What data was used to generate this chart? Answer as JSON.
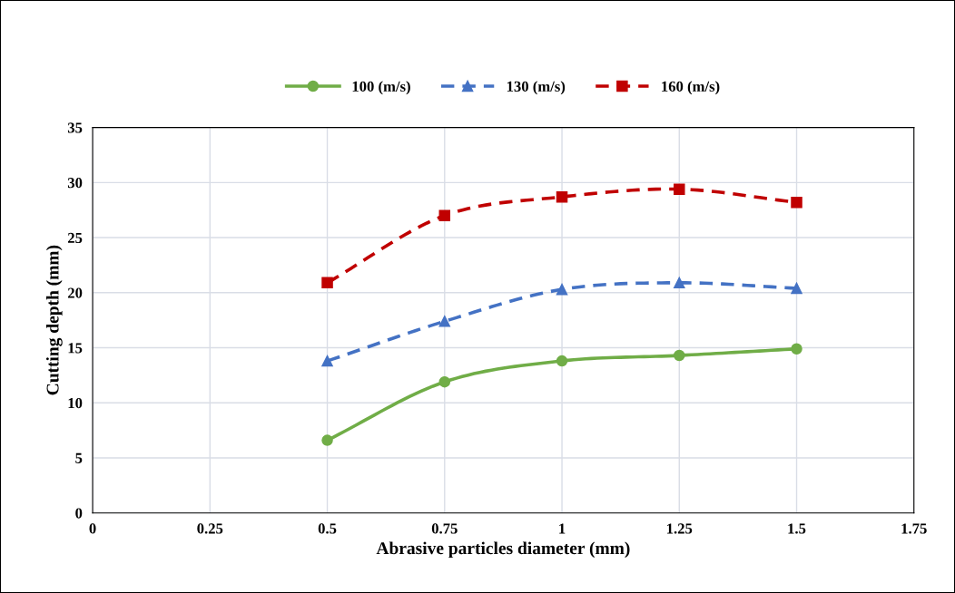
{
  "chart_data": {
    "type": "line",
    "xlabel": "Abrasive particles diameter (mm)",
    "ylabel": "Cutting depth (mm)",
    "x": [
      0.5,
      0.75,
      1,
      1.25,
      1.5
    ],
    "series": [
      {
        "name": "100 (m/s)",
        "color": "#70ad47",
        "marker": "circle",
        "line_style": "solid",
        "values": [
          6.6,
          11.9,
          13.8,
          14.3,
          14.9
        ]
      },
      {
        "name": "130 (m/s)",
        "color": "#4472c4",
        "marker": "triangle",
        "line_style": "dashed",
        "values": [
          13.8,
          17.4,
          20.3,
          20.9,
          20.4
        ]
      },
      {
        "name": "160 (m/s)",
        "color": "#c00000",
        "marker": "square",
        "line_style": "dashed",
        "values": [
          20.9,
          27.0,
          28.7,
          29.4,
          28.2
        ]
      }
    ],
    "xlim": [
      0,
      1.75
    ],
    "xticks": [
      0,
      0.25,
      0.5,
      0.75,
      1,
      1.25,
      1.5,
      1.75
    ],
    "ylim": [
      0,
      35
    ],
    "yticks": [
      0,
      5,
      10,
      15,
      20,
      25,
      30,
      35
    ],
    "grid": true,
    "legend": "top"
  }
}
